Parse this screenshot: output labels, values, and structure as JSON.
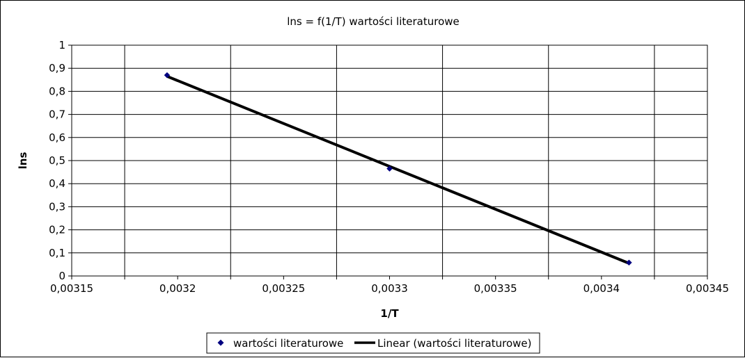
{
  "chart_data": {
    "type": "scatter",
    "title": "lns = f(1/T) wartości literaturowe",
    "xlabel": "1/T",
    "ylabel": "lns",
    "xlim": [
      0.00315,
      0.00345
    ],
    "ylim": [
      0,
      1
    ],
    "xticks": [
      0.00315,
      0.0032,
      0.00325,
      0.0033,
      0.00335,
      0.0034,
      0.00345
    ],
    "yticks": [
      0,
      0.1,
      0.2,
      0.3,
      0.4,
      0.5,
      0.6,
      0.7,
      0.8,
      0.9,
      1
    ],
    "xtick_labels": [
      "0,00315",
      "0,0032",
      "0,00325",
      "0,0033",
      "0,00335",
      "0,0034",
      "0,00345"
    ],
    "ytick_labels": [
      "0",
      "0,1",
      "0,2",
      "0,3",
      "0,4",
      "0,5",
      "0,6",
      "0,7",
      "0,8",
      "0,9",
      "1"
    ],
    "grid": true,
    "legend_position": "bottom",
    "series": [
      {
        "name": "wartości literaturowe",
        "kind": "points",
        "marker": "diamond",
        "color": "#000080",
        "points": [
          {
            "x": 0.003195,
            "y": 0.87
          },
          {
            "x": 0.0033,
            "y": 0.465
          },
          {
            "x": 0.003413,
            "y": 0.058
          }
        ]
      },
      {
        "name": "Linear (wartości literaturowe)",
        "kind": "trendline",
        "color": "#000000",
        "points": [
          {
            "x": 0.003195,
            "y": 0.865
          },
          {
            "x": 0.003413,
            "y": 0.055
          }
        ]
      }
    ]
  }
}
